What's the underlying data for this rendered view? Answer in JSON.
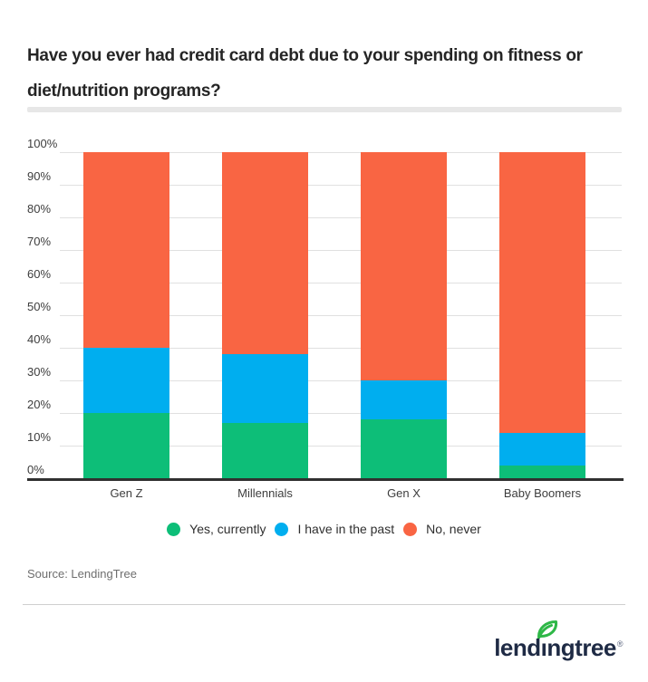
{
  "title": {
    "line1": "Have you ever had credit card debt due to your spending on fitness or",
    "line2": "diet/nutrition programs?"
  },
  "chart_data": {
    "type": "bar",
    "stacked": true,
    "title": "Have you ever had credit card debt due to your spending on fitness or diet/nutrition programs?",
    "categories": [
      "Gen Z",
      "Millennials",
      "Gen X",
      "Baby Boomers"
    ],
    "series": [
      {
        "name": "Yes, currently",
        "color": "#0dbe78",
        "values": [
          20,
          17,
          18,
          4
        ]
      },
      {
        "name": "I have in the past",
        "color": "#00aeef",
        "values": [
          20,
          21,
          12,
          10
        ]
      },
      {
        "name": "No, never",
        "color": "#f96543",
        "values": [
          60,
          62,
          70,
          86
        ]
      }
    ],
    "y_axis": {
      "min": 0,
      "max": 100,
      "unit": "%",
      "ticks": [
        "0%",
        "10%",
        "20%",
        "30%",
        "40%",
        "50%",
        "60%",
        "70%",
        "80%",
        "90%",
        "100%"
      ]
    },
    "grid": true,
    "legend_position": "bottom"
  },
  "source": "Source: LendingTree",
  "logo": {
    "prefix": "lend",
    "dotless_i": "ı",
    "suffix": "ngtree",
    "registered": "®",
    "text_color": "#1f2b45",
    "leaf_color": "#2eb747"
  }
}
